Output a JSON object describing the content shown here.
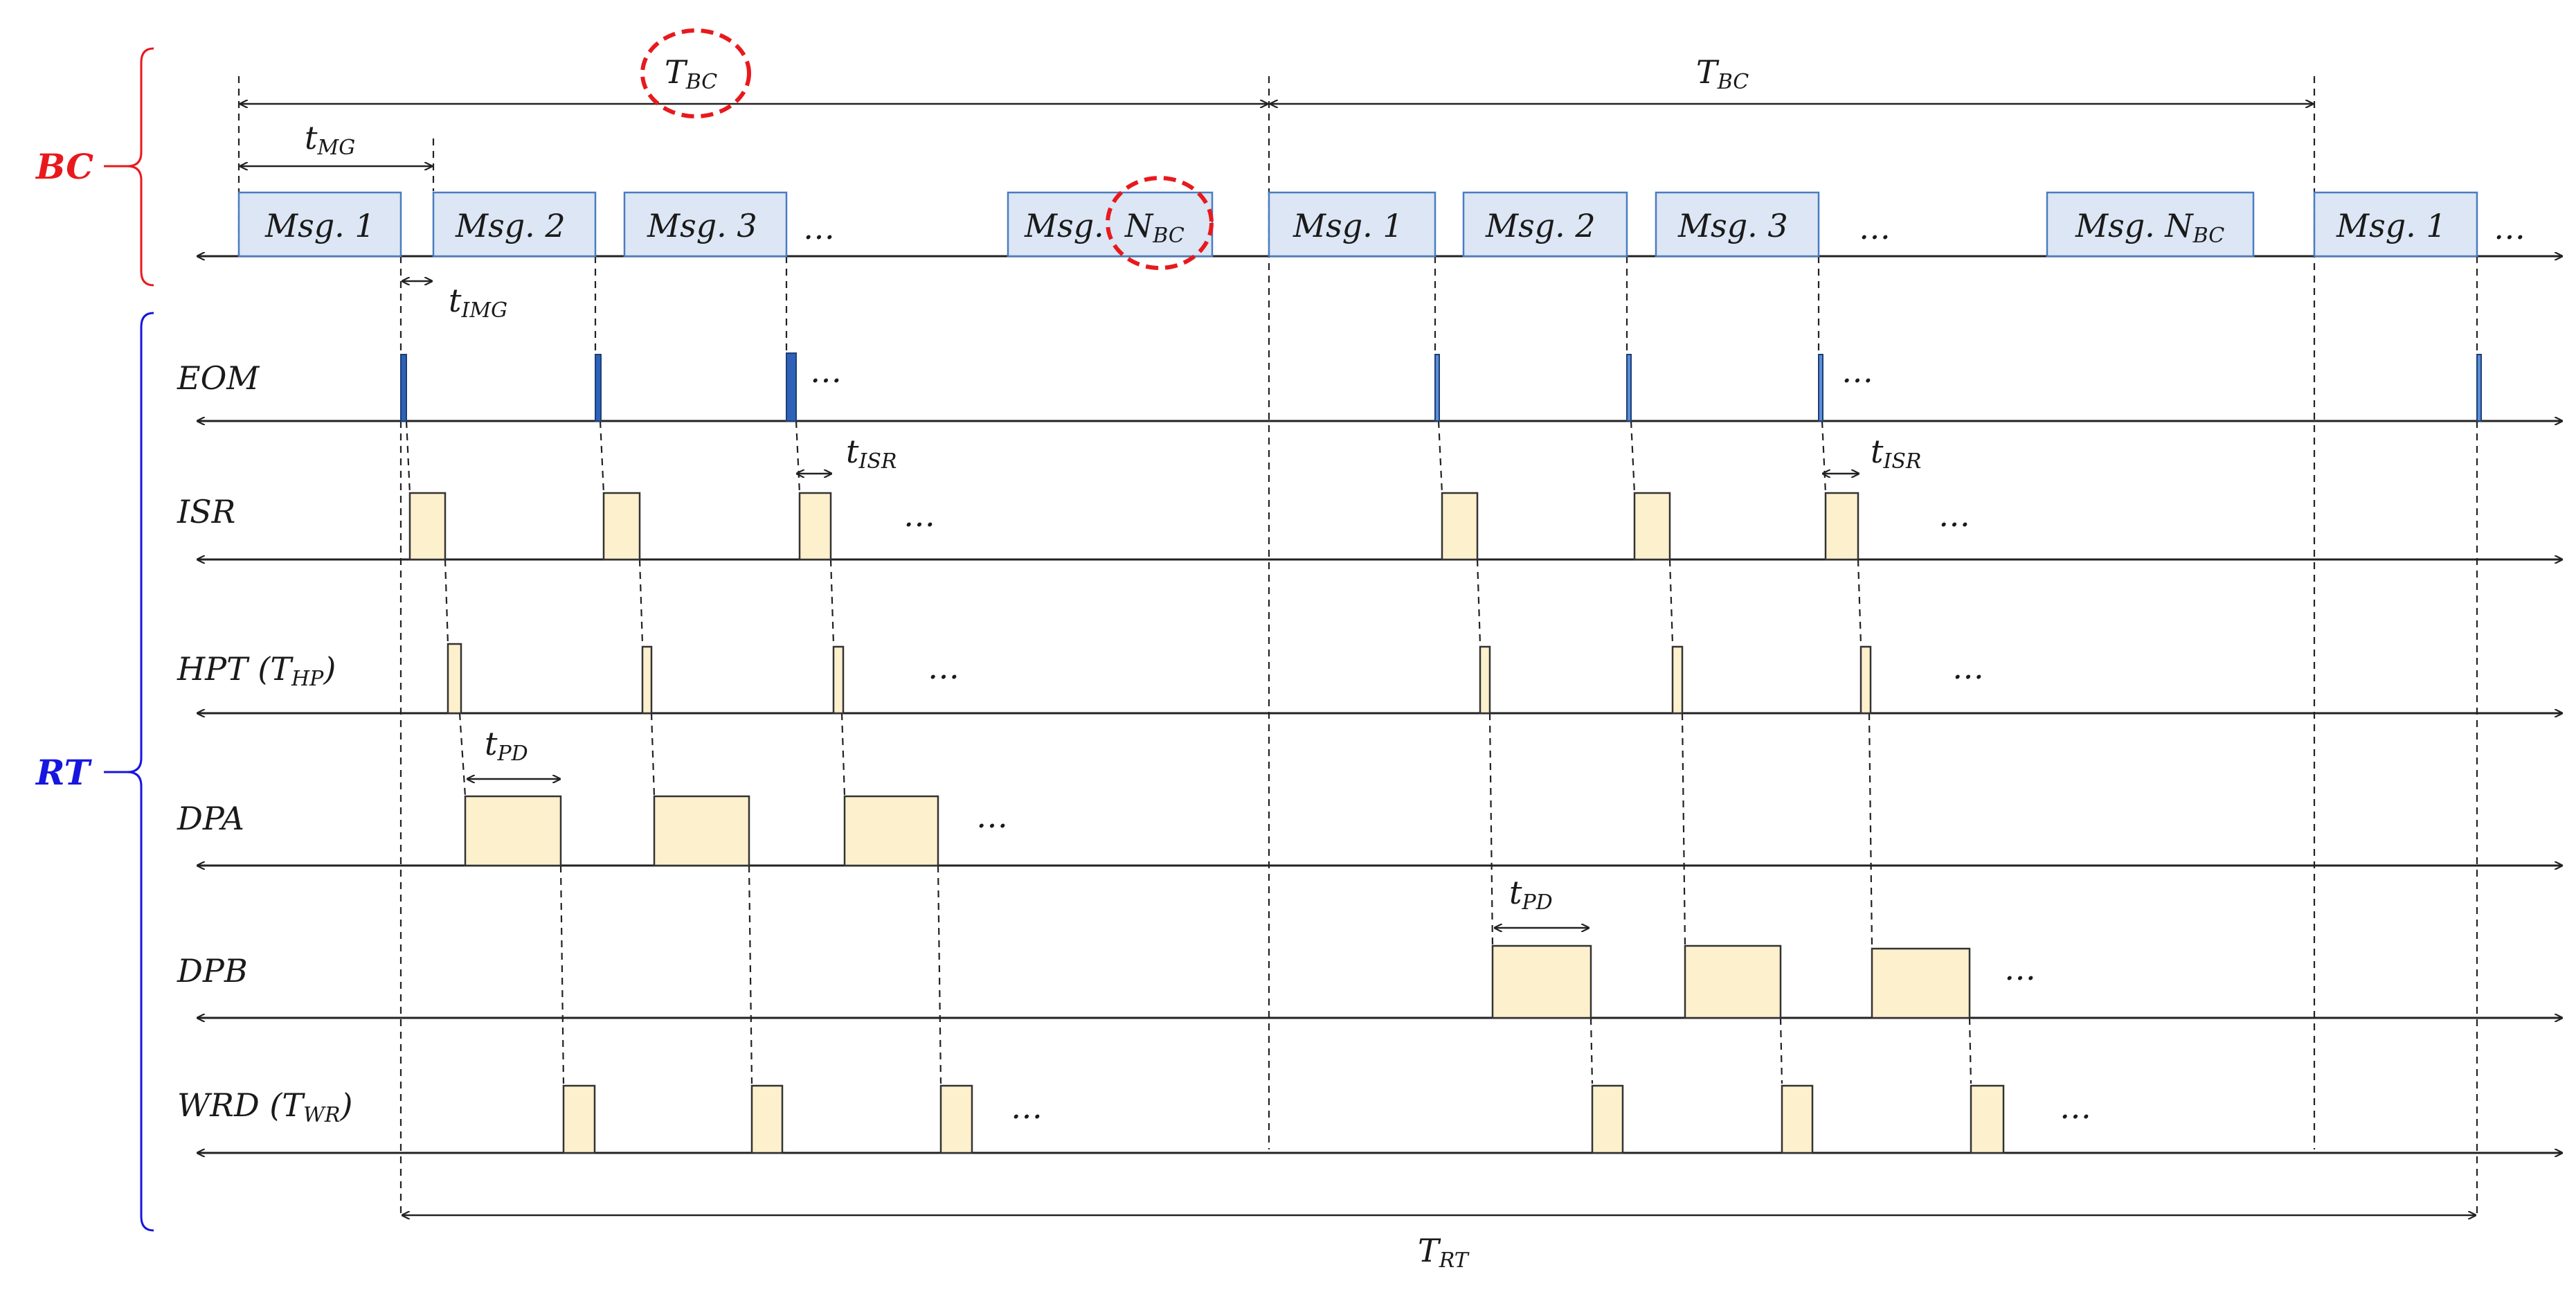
{
  "groups": {
    "bc": "BC",
    "rt": "RT"
  },
  "bc": {
    "period_label_1": "T",
    "period_label_1_sub": "BC",
    "period_label_2": "T",
    "period_label_2_sub": "BC",
    "mg_label": "t",
    "mg_label_sub": "MG",
    "img_label": "t",
    "img_label_sub": "IMG",
    "messages": [
      {
        "text": "Msg. 1",
        "sub": ""
      },
      {
        "text": "Msg. 2",
        "sub": ""
      },
      {
        "text": "Msg. 3",
        "sub": ""
      },
      {
        "text": "Msg.",
        "sub": ""
      },
      {
        "text": "N",
        "sub": "BC"
      },
      {
        "text": "Msg. 1",
        "sub": ""
      },
      {
        "text": "Msg. 2",
        "sub": ""
      },
      {
        "text": "Msg. 3",
        "sub": ""
      },
      {
        "text": "Msg. N",
        "sub": "BC"
      },
      {
        "text": "Msg. 1",
        "sub": ""
      }
    ],
    "ellipsis": "…"
  },
  "rows": [
    {
      "label": "EOM",
      "label_sub": "",
      "label_tail": ""
    },
    {
      "label": "ISR",
      "label_sub": "",
      "label_tail": ""
    },
    {
      "label": "HPT (T",
      "label_sub": "HP",
      "label_tail": ")"
    },
    {
      "label": "DPA",
      "label_sub": "",
      "label_tail": ""
    },
    {
      "label": "DPB",
      "label_sub": "",
      "label_tail": ""
    },
    {
      "label": "WRD (T",
      "label_sub": "WR",
      "label_tail": ")"
    }
  ],
  "annotations": {
    "isr_label": "t",
    "isr_label_sub": "ISR",
    "pd_label": "t",
    "pd_label_sub": "PD",
    "rt_period": "T",
    "rt_period_sub": "RT",
    "ellipsis": "…"
  },
  "colors": {
    "bc_group": "#e8191d",
    "rt_group": "#1616e0",
    "message_fill": "#dce6f4",
    "message_border": "#4a7cc0",
    "eom_pulse": "#2e62b8",
    "task_fill": "#fdf0cc",
    "highlight_circle": "#e8191d"
  }
}
